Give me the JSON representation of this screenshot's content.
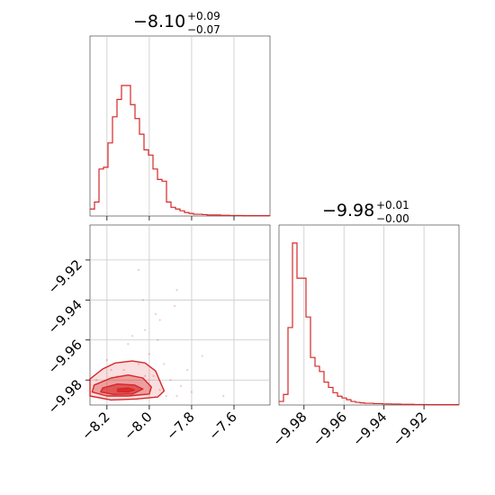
{
  "chart_data": [
    {
      "type": "histogram",
      "panel": "top-left",
      "title": {
        "value": "−8.10",
        "plus": "+0.09",
        "minus": "−0.07"
      },
      "x_range": [
        -8.28,
        -7.43
      ],
      "x_ticks": [
        -8.2,
        -8.0,
        -7.8,
        -7.6
      ],
      "grid": true,
      "color": "#d62728",
      "bin_width": 0.02125,
      "counts": [
        0.04,
        0.08,
        0.27,
        0.28,
        0.42,
        0.57,
        0.67,
        0.75,
        0.75,
        0.64,
        0.56,
        0.47,
        0.38,
        0.35,
        0.27,
        0.21,
        0.2,
        0.08,
        0.05,
        0.04,
        0.03,
        0.02,
        0.015,
        0.01,
        0.01,
        0.008,
        0.006,
        0.006,
        0.006,
        0.004,
        0.004,
        0.003,
        0.003,
        0.003,
        0.002,
        0.002,
        0.002,
        0.002,
        0.002,
        0.002
      ]
    },
    {
      "type": "histogram",
      "panel": "bottom-right",
      "title": {
        "value": "−9.98",
        "plus": "+0.01",
        "minus": "−0.00"
      },
      "x_range": [
        -9.9925,
        -9.9025
      ],
      "x_ticks": [
        -9.98,
        -9.96,
        -9.94,
        -9.92
      ],
      "x_tick_labels": [
        "−9.98",
        "−9.96",
        "−9.94",
        "−9.92"
      ],
      "grid": true,
      "color": "#d62728",
      "bin_width": 0.00225,
      "counts": [
        0.02,
        0.06,
        0.44,
        0.92,
        0.72,
        0.72,
        0.5,
        0.27,
        0.22,
        0.19,
        0.13,
        0.1,
        0.07,
        0.05,
        0.04,
        0.03,
        0.02,
        0.015,
        0.012,
        0.01,
        0.01,
        0.008,
        0.008,
        0.006,
        0.006,
        0.005,
        0.005,
        0.004,
        0.004,
        0.004,
        0.003,
        0.003,
        0.003,
        0.002,
        0.002,
        0.002,
        0.002,
        0.002,
        0.002,
        0.002
      ]
    },
    {
      "type": "scatter-contour",
      "panel": "bottom-left",
      "x_range": [
        -8.28,
        -7.43
      ],
      "y_range": [
        -9.9925,
        -9.9025
      ],
      "x_ticks": [
        -8.2,
        -8.0,
        -7.8,
        -7.6
      ],
      "x_tick_labels": [
        "−8.2",
        "−8.0",
        "−7.8",
        "−7.6"
      ],
      "y_ticks": [
        -9.98,
        -9.96,
        -9.94,
        -9.92
      ],
      "y_tick_labels": [
        "−9.98",
        "−9.96",
        "−9.94",
        "−9.92"
      ],
      "grid": true,
      "color": "#d62728",
      "points": [
        [
          -8.05,
          -9.925
        ],
        [
          -7.87,
          -9.935
        ],
        [
          -7.88,
          -9.943
        ],
        [
          -7.95,
          -9.95
        ],
        [
          -8.02,
          -9.955
        ],
        [
          -7.75,
          -9.968
        ],
        [
          -8.1,
          -9.962
        ],
        [
          -8.2,
          -9.97
        ],
        [
          -8.12,
          -9.975
        ],
        [
          -8.05,
          -9.972
        ],
        [
          -7.98,
          -9.978
        ],
        [
          -7.9,
          -9.98
        ],
        [
          -7.85,
          -9.983
        ],
        [
          -8.22,
          -9.985
        ],
        [
          -7.65,
          -9.988
        ],
        [
          -7.92,
          -9.988
        ],
        [
          -7.8,
          -9.986
        ],
        [
          -8.0,
          -9.967
        ],
        [
          -8.15,
          -9.978
        ],
        [
          -7.95,
          -9.985
        ],
        [
          -8.08,
          -9.958
        ],
        [
          -7.93,
          -9.972
        ],
        [
          -8.18,
          -9.975
        ],
        [
          -7.97,
          -9.947
        ],
        [
          -8.03,
          -9.94
        ],
        [
          -7.96,
          -9.96
        ],
        [
          -8.25,
          -9.98
        ],
        [
          -7.87,
          -9.988
        ],
        [
          -7.82,
          -9.975
        ],
        [
          -8.02,
          -9.978
        ]
      ],
      "contours": [
        {
          "level": "outer",
          "points": [
            [
              -8.28,
              -9.9795
            ],
            [
              -8.22,
              -9.9745
            ],
            [
              -8.16,
              -9.9715
            ],
            [
              -8.08,
              -9.9705
            ],
            [
              -8.02,
              -9.9715
            ],
            [
              -7.97,
              -9.9755
            ],
            [
              -7.95,
              -9.9805
            ],
            [
              -7.93,
              -9.9855
            ],
            [
              -7.96,
              -9.9885
            ],
            [
              -8.06,
              -9.9895
            ],
            [
              -8.18,
              -9.99
            ],
            [
              -8.28,
              -9.988
            ]
          ]
        },
        {
          "level": "middle",
          "points": [
            [
              -8.26,
              -9.9825
            ],
            [
              -8.18,
              -9.979
            ],
            [
              -8.1,
              -9.9775
            ],
            [
              -8.03,
              -9.979
            ],
            [
              -7.99,
              -9.9835
            ],
            [
              -8.0,
              -9.987
            ],
            [
              -8.1,
              -9.988
            ],
            [
              -8.2,
              -9.988
            ],
            [
              -8.27,
              -9.986
            ]
          ]
        },
        {
          "level": "inner",
          "points": [
            [
              -8.22,
              -9.984
            ],
            [
              -8.15,
              -9.982
            ],
            [
              -8.07,
              -9.9825
            ],
            [
              -8.03,
              -9.9845
            ],
            [
              -8.08,
              -9.987
            ],
            [
              -8.17,
              -9.9872
            ],
            [
              -8.23,
              -9.986
            ]
          ]
        },
        {
          "level": "core",
          "points": [
            [
              -8.15,
              -9.9845
            ],
            [
              -8.1,
              -9.984
            ],
            [
              -8.07,
              -9.985
            ],
            [
              -8.1,
              -9.986
            ],
            [
              -8.15,
              -9.9858
            ]
          ]
        }
      ]
    }
  ]
}
